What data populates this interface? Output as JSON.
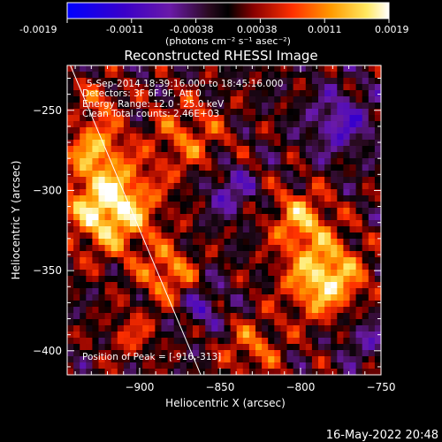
{
  "colorbar": {
    "ticks": [
      "-0.0019",
      "-0.0011",
      "-0.00038",
      "0.00038",
      "0.0011",
      "0.0019"
    ],
    "units": "(photons cm⁻² s⁻¹ asec⁻²)"
  },
  "image_title": "Reconstructed RHESSI Image",
  "info": {
    "time": "5-Sep-2014 18:39:16.000 to 18:45:16.000",
    "detectors": "Detectors: 3F 6F 9F, Att 0",
    "energy": "Energy Range: 12.0 - 25.0 keV",
    "method": "Clean    Total counts: 2.46E+03",
    "peak": "Position of Peak = [-916,-313]"
  },
  "footer_timestamp": "16-May-2022 20:48",
  "colors": {
    "background": "#000000",
    "text": "#ffffff",
    "colormap": [
      "#0000ff",
      "#3b00c8",
      "#6a1aa8",
      "#2a0a20",
      "#000000",
      "#8a0000",
      "#ff3000",
      "#ff9a00",
      "#ffe860",
      "#ffffff"
    ]
  },
  "chart_data": {
    "type": "heatmap",
    "title": "Reconstructed RHESSI Image",
    "xlabel": "Heliocentric X (arcsec)",
    "ylabel": "Heliocentric Y (arcsec)",
    "xlim": [
      -945,
      -750
    ],
    "ylim": [
      -415,
      -222
    ],
    "xticks": [
      -900,
      -850,
      -800,
      -750
    ],
    "yticks": [
      -250,
      -300,
      -350,
      -400
    ],
    "xtick_labels": [
      "−900",
      "−850",
      "−800",
      "−750"
    ],
    "ytick_labels": [
      "−250",
      "−300",
      "−350",
      "−400"
    ],
    "colorbar_range": [
      -0.0019,
      0.0019
    ],
    "peak_position": [
      -916,
      -313
    ],
    "limb_line": [
      [
        -943,
        -222
      ],
      [
        -862,
        -415
      ]
    ],
    "sources": [
      {
        "x": -918,
        "y": -310,
        "sigma": 19,
        "amp": 0.0019
      },
      {
        "x": -928,
        "y": -272,
        "sigma": 12,
        "amp": 0.0011
      },
      {
        "x": -785,
        "y": -355,
        "sigma": 17,
        "amp": 0.0017
      },
      {
        "x": -800,
        "y": -318,
        "sigma": 13,
        "amp": 0.0012
      },
      {
        "x": -882,
        "y": -352,
        "sigma": 12,
        "amp": 0.0011
      },
      {
        "x": -870,
        "y": -267,
        "sigma": 17,
        "amp": 0.0008
      },
      {
        "x": -830,
        "y": -398,
        "sigma": 13,
        "amp": 0.0008
      },
      {
        "x": -905,
        "y": -390,
        "sigma": 11,
        "amp": 0.0006
      },
      {
        "x": -925,
        "y": -243,
        "sigma": 9,
        "amp": 0.0007
      },
      {
        "x": -845,
        "y": -300,
        "sigma": 11,
        "amp": -0.0008
      },
      {
        "x": -775,
        "y": -258,
        "sigma": 14,
        "amp": -0.0009
      },
      {
        "x": -860,
        "y": -372,
        "sigma": 10,
        "amp": -0.0007
      },
      {
        "x": -760,
        "y": -390,
        "sigma": 12,
        "amp": -0.0006
      }
    ]
  }
}
